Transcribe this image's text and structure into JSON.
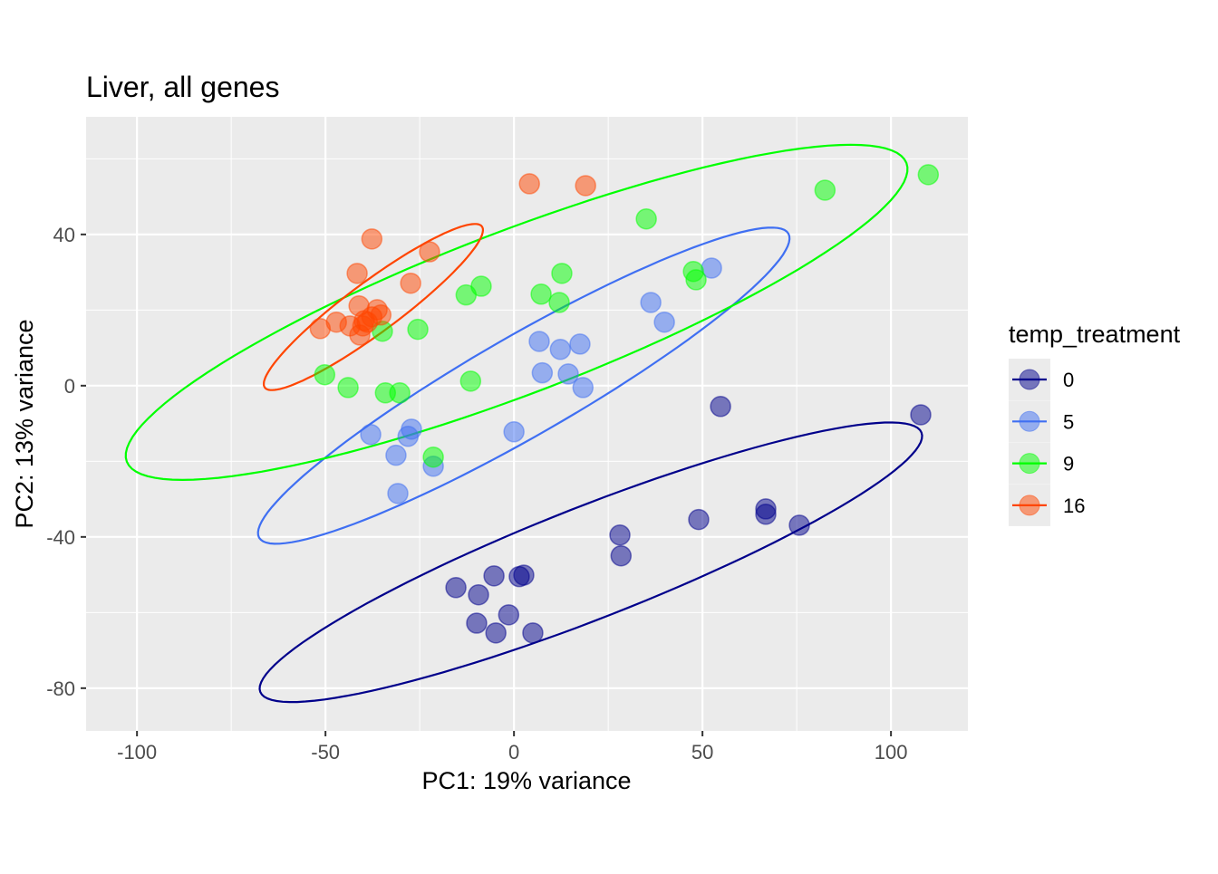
{
  "chart_data": {
    "type": "scatter",
    "title": "Liver, all genes",
    "xlabel": "PC1: 19% variance",
    "ylabel": "PC2: 13% variance",
    "xlim": [
      -113.5,
      120.4
    ],
    "ylim": [
      -91.3,
      71.1
    ],
    "x_ticks": [
      -100,
      -50,
      0,
      50,
      100
    ],
    "x_tick_labels": [
      "-100",
      "-50",
      "0",
      "50",
      "100"
    ],
    "y_ticks": [
      -80,
      -40,
      0,
      40
    ],
    "y_tick_labels": [
      "-80",
      "-40",
      "0",
      "40"
    ],
    "x_minor": [
      -75,
      -25,
      25,
      75
    ],
    "y_minor": [
      -60,
      -20,
      20,
      60
    ],
    "grid": true,
    "legend": {
      "title": "temp_treatment",
      "placement": "right"
    },
    "series": [
      {
        "name": "0",
        "color": "#00008B",
        "ellipse": {
          "center": [
            20.4,
            -46.7
          ],
          "major": [
            87.7,
            34.3
          ],
          "minor": [
            5.4,
            -13.8
          ]
        },
        "points": [
          [
            54.8,
            -5.5
          ],
          [
            107.9,
            -7.7
          ],
          [
            66.8,
            -32.6
          ],
          [
            66.8,
            -34
          ],
          [
            75.7,
            -36.9
          ],
          [
            49,
            -35.4
          ],
          [
            28.1,
            -39.5
          ],
          [
            28.4,
            -45
          ],
          [
            2.6,
            -50.1
          ],
          [
            1.4,
            -50.5
          ],
          [
            -5.3,
            -50.3
          ],
          [
            -15.4,
            -53.4
          ],
          [
            -9.4,
            -55.3
          ],
          [
            -1.4,
            -60.6
          ],
          [
            -9.9,
            -62.8
          ],
          [
            -4.8,
            -65.4
          ],
          [
            5,
            -65.4
          ]
        ]
      },
      {
        "name": "5",
        "color": "#3F6FF2",
        "ellipse": {
          "center": [
            2.6,
            0
          ],
          "major": [
            70.2,
            40.2
          ],
          "minor": [
            6.5,
            -11.5
          ]
        },
        "points": [
          [
            52.4,
            31.1
          ],
          [
            36.3,
            22
          ],
          [
            39.9,
            16.8
          ],
          [
            6.7,
            11.7
          ],
          [
            12.3,
            9.6
          ],
          [
            17.5,
            11
          ],
          [
            7.5,
            3.4
          ],
          [
            14.4,
            3.1
          ],
          [
            18.3,
            -0.5
          ],
          [
            0,
            -12.2
          ],
          [
            -27.2,
            -11.5
          ],
          [
            -28.1,
            -13.4
          ],
          [
            -38,
            -12.9
          ],
          [
            -31.3,
            -18.4
          ],
          [
            -21.4,
            -21.3
          ],
          [
            -30.8,
            -28.5
          ]
        ]
      },
      {
        "name": "9",
        "color": "#00FF00",
        "ellipse": {
          "center": [
            0.7,
            19.4
          ],
          "major": [
            103.4,
            39.5
          ],
          "minor": [
            7.7,
            -20.1
          ]
        },
        "points": [
          [
            109.9,
            55.8
          ],
          [
            82.5,
            51.7
          ],
          [
            35.1,
            44.1
          ],
          [
            47.6,
            30.2
          ],
          [
            48.3,
            28
          ],
          [
            12.7,
            29.7
          ],
          [
            12,
            22
          ],
          [
            7.2,
            24.2
          ],
          [
            -8.7,
            26.3
          ],
          [
            -12.7,
            24
          ],
          [
            -25.5,
            14.9
          ],
          [
            -34.9,
            14.4
          ],
          [
            -11.5,
            1.2
          ],
          [
            -50.2,
            2.9
          ],
          [
            -44,
            -0.5
          ],
          [
            -34.1,
            -1.9
          ],
          [
            -30.3,
            -1.9
          ],
          [
            -21.4,
            -18.9
          ]
        ]
      },
      {
        "name": "16",
        "color": "#FF4500",
        "ellipse": {
          "center": [
            -37.3,
            20.8
          ],
          "major": [
            28.8,
            21.3
          ],
          "minor": [
            4,
            -5.4
          ]
        },
        "points": [
          [
            4.1,
            53.4
          ],
          [
            19,
            52.9
          ],
          [
            -37.7,
            38.8
          ],
          [
            -22.4,
            35.4
          ],
          [
            -41.6,
            29.7
          ],
          [
            -27.4,
            27.1
          ],
          [
            -41.1,
            21.1
          ],
          [
            -36.3,
            20.1
          ],
          [
            -35.3,
            18.7
          ],
          [
            -37.7,
            18.2
          ],
          [
            -39.7,
            17.2
          ],
          [
            -40.1,
            15.8
          ],
          [
            -47.1,
            16.8
          ],
          [
            -51.4,
            15.1
          ],
          [
            -43.5,
            15.8
          ],
          [
            -40.9,
            13.4
          ],
          [
            -38.9,
            16.8
          ]
        ]
      }
    ]
  }
}
